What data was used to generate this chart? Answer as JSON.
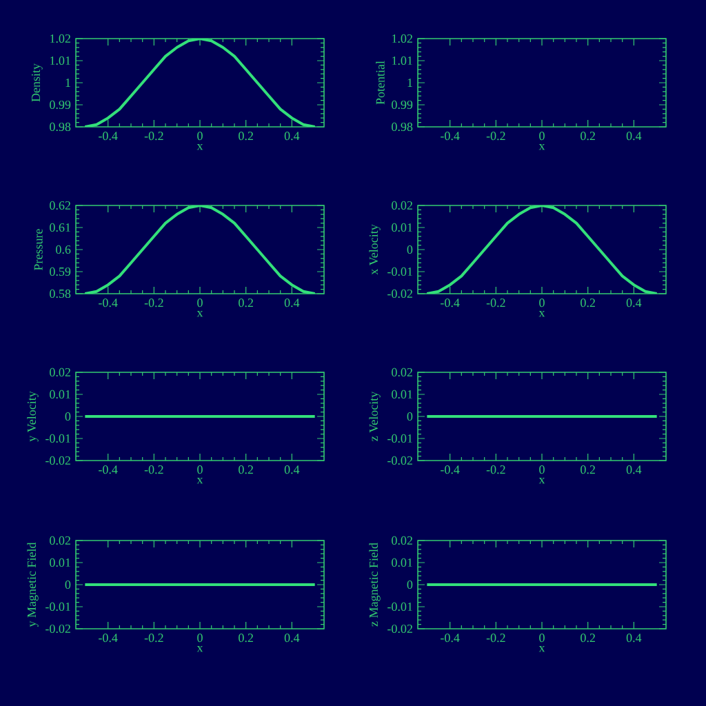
{
  "chart_data": [
    {
      "type": "line",
      "xlabel": "x",
      "ylabel": "Density",
      "x": [
        -0.5,
        -0.45,
        -0.4,
        -0.35,
        -0.3,
        -0.25,
        -0.2,
        -0.15,
        -0.1,
        -0.05,
        0,
        0.05,
        0.1,
        0.15,
        0.2,
        0.25,
        0.3,
        0.35,
        0.4,
        0.45,
        0.5
      ],
      "series": [
        {
          "color": "#33e07a",
          "values": [
            0.98,
            0.981,
            0.984,
            0.988,
            0.994,
            1.0,
            1.006,
            1.012,
            1.016,
            1.019,
            1.02,
            1.019,
            1.016,
            1.012,
            1.006,
            1.0,
            0.994,
            0.988,
            0.984,
            0.981,
            0.98
          ]
        }
      ],
      "xlim": [
        -0.54,
        0.54
      ],
      "ylim": [
        0.98,
        1.02
      ],
      "xticks": [
        -0.4,
        -0.2,
        0,
        0.2,
        0.4
      ],
      "yticks": [
        0.98,
        0.99,
        1,
        1.01,
        1.02
      ]
    },
    {
      "type": "line",
      "xlabel": "x",
      "ylabel": "Potential",
      "xlim": [
        -0.54,
        0.54
      ],
      "ylim": [
        0.98,
        1.02
      ],
      "xticks": [
        -0.4,
        -0.2,
        0,
        0.2,
        0.4
      ],
      "yticks": [
        0.98,
        0.99,
        1,
        1.01,
        1.02
      ]
    },
    {
      "type": "line",
      "xlabel": "x",
      "ylabel": "Pressure",
      "x": [
        -0.5,
        -0.45,
        -0.4,
        -0.35,
        -0.3,
        -0.25,
        -0.2,
        -0.15,
        -0.1,
        -0.05,
        0,
        0.05,
        0.1,
        0.15,
        0.2,
        0.25,
        0.3,
        0.35,
        0.4,
        0.45,
        0.5
      ],
      "series": [
        {
          "color": "#33e07a",
          "values": [
            0.58,
            0.581,
            0.584,
            0.588,
            0.594,
            0.6,
            0.606,
            0.612,
            0.616,
            0.619,
            0.62,
            0.619,
            0.616,
            0.612,
            0.606,
            0.6,
            0.594,
            0.588,
            0.584,
            0.581,
            0.58
          ]
        }
      ],
      "xlim": [
        -0.54,
        0.54
      ],
      "ylim": [
        0.58,
        0.62
      ],
      "xticks": [
        -0.4,
        -0.2,
        0,
        0.2,
        0.4
      ],
      "yticks": [
        0.58,
        0.59,
        0.6,
        0.61,
        0.62
      ]
    },
    {
      "type": "line",
      "xlabel": "x",
      "ylabel": "x Velocity",
      "x": [
        -0.5,
        -0.45,
        -0.4,
        -0.35,
        -0.3,
        -0.25,
        -0.2,
        -0.15,
        -0.1,
        -0.05,
        0,
        0.05,
        0.1,
        0.15,
        0.2,
        0.25,
        0.3,
        0.35,
        0.4,
        0.45,
        0.5
      ],
      "series": [
        {
          "color": "#33e07a",
          "values": [
            -0.02,
            -0.019,
            -0.016,
            -0.012,
            -0.006,
            0,
            0.006,
            0.012,
            0.016,
            0.019,
            0.02,
            0.019,
            0.016,
            0.012,
            0.006,
            0,
            -0.006,
            -0.012,
            -0.016,
            -0.019,
            -0.02
          ]
        }
      ],
      "xlim": [
        -0.54,
        0.54
      ],
      "ylim": [
        -0.02,
        0.02
      ],
      "xticks": [
        -0.4,
        -0.2,
        0,
        0.2,
        0.4
      ],
      "yticks": [
        -0.02,
        -0.01,
        0,
        0.01,
        0.02
      ]
    },
    {
      "type": "line",
      "xlabel": "x",
      "ylabel": "y Velocity",
      "x": [
        -0.5,
        0.5
      ],
      "series": [
        {
          "color": "#33e07a",
          "values": [
            0,
            0
          ]
        }
      ],
      "xlim": [
        -0.54,
        0.54
      ],
      "ylim": [
        -0.02,
        0.02
      ],
      "xticks": [
        -0.4,
        -0.2,
        0,
        0.2,
        0.4
      ],
      "yticks": [
        -0.02,
        -0.01,
        0,
        0.01,
        0.02
      ]
    },
    {
      "type": "line",
      "xlabel": "x",
      "ylabel": "z Velocity",
      "x": [
        -0.5,
        0.5
      ],
      "series": [
        {
          "color": "#33e07a",
          "values": [
            0,
            0
          ]
        }
      ],
      "xlim": [
        -0.54,
        0.54
      ],
      "ylim": [
        -0.02,
        0.02
      ],
      "xticks": [
        -0.4,
        -0.2,
        0,
        0.2,
        0.4
      ],
      "yticks": [
        -0.02,
        -0.01,
        0,
        0.01,
        0.02
      ]
    },
    {
      "type": "line",
      "xlabel": "x",
      "ylabel": "y Magnetic Field",
      "x": [
        -0.5,
        0.5
      ],
      "series": [
        {
          "color": "#33e07a",
          "values": [
            0,
            0
          ]
        }
      ],
      "xlim": [
        -0.54,
        0.54
      ],
      "ylim": [
        -0.02,
        0.02
      ],
      "xticks": [
        -0.4,
        -0.2,
        0,
        0.2,
        0.4
      ],
      "yticks": [
        -0.02,
        -0.01,
        0,
        0.01,
        0.02
      ]
    },
    {
      "type": "line",
      "xlabel": "x",
      "ylabel": "z Magnetic Field",
      "x": [
        -0.5,
        0.5
      ],
      "series": [
        {
          "color": "#33e07a",
          "values": [
            0,
            0
          ]
        }
      ],
      "xlim": [
        -0.54,
        0.54
      ],
      "ylim": [
        -0.02,
        0.02
      ],
      "xticks": [
        -0.4,
        -0.2,
        0,
        0.2,
        0.4
      ],
      "yticks": [
        -0.02,
        -0.01,
        0,
        0.01,
        0.02
      ]
    }
  ]
}
